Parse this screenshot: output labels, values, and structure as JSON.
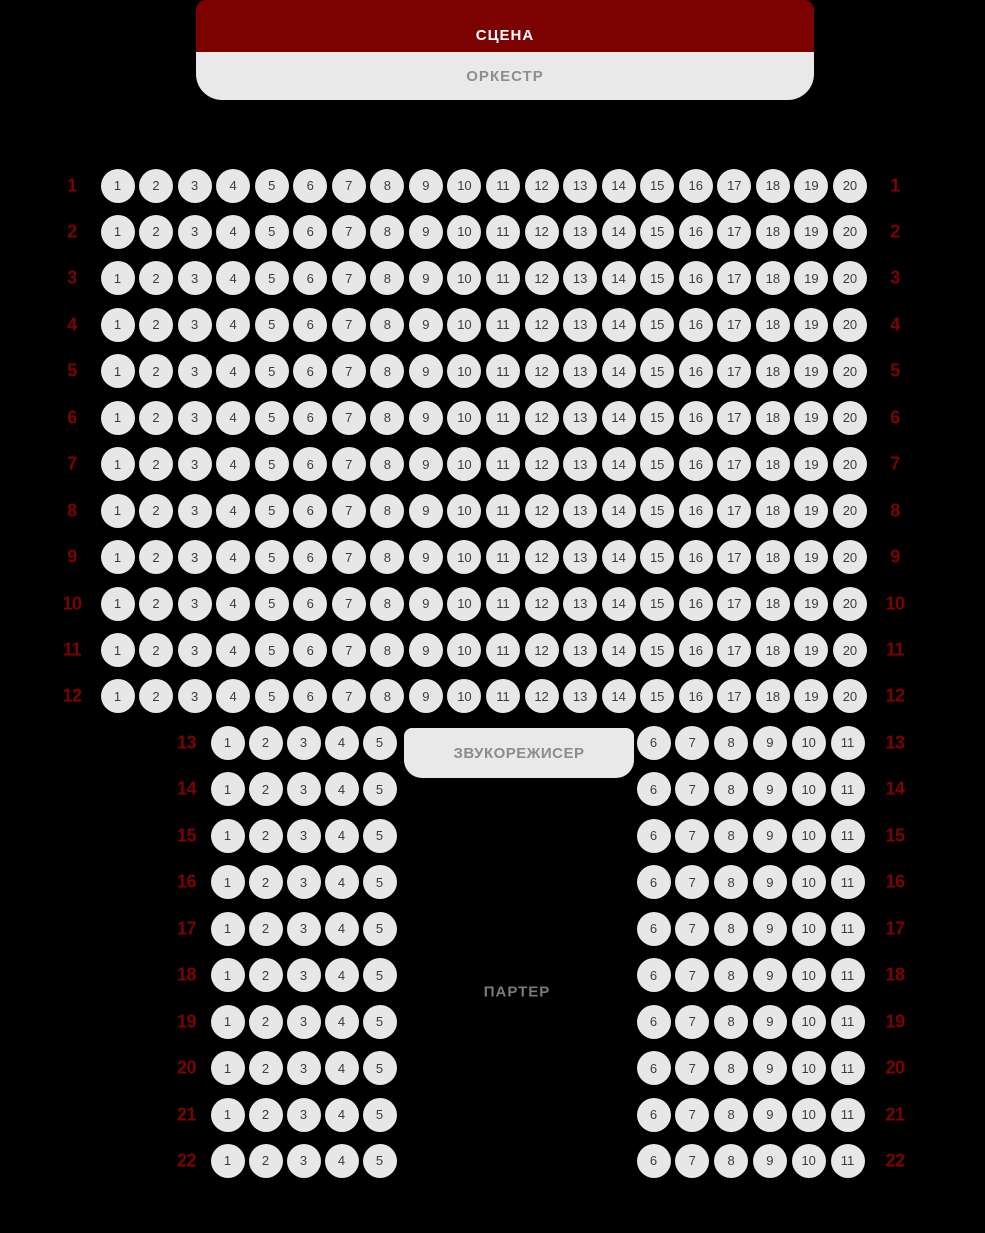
{
  "colors": {
    "background": "#000000",
    "stage_bg": "#7c0101",
    "stage_text": "#ffffff",
    "panel_bg": "#e9e9e9",
    "panel_text": "#8f8f8f",
    "sound_text": "#8c8c8c",
    "seat_bg": "#e7e7e7",
    "seat_text": "#3c3c3c",
    "row_label": "#7b0303",
    "parterre_text": "#7a7a7a"
  },
  "stage": {
    "label": "СЦЕНА"
  },
  "orchestra": {
    "label": "ОРКЕСТР"
  },
  "sound_engineer": {
    "label": "ЗВУКОРЕЖИСЕР"
  },
  "section_label": {
    "label": "ПАРТЕР"
  },
  "rows": [
    {
      "row": 1,
      "layout": "full",
      "seats": [
        1,
        2,
        3,
        4,
        5,
        6,
        7,
        8,
        9,
        10,
        11,
        12,
        13,
        14,
        15,
        16,
        17,
        18,
        19,
        20
      ]
    },
    {
      "row": 2,
      "layout": "full",
      "seats": [
        1,
        2,
        3,
        4,
        5,
        6,
        7,
        8,
        9,
        10,
        11,
        12,
        13,
        14,
        15,
        16,
        17,
        18,
        19,
        20
      ]
    },
    {
      "row": 3,
      "layout": "full",
      "seats": [
        1,
        2,
        3,
        4,
        5,
        6,
        7,
        8,
        9,
        10,
        11,
        12,
        13,
        14,
        15,
        16,
        17,
        18,
        19,
        20
      ]
    },
    {
      "row": 4,
      "layout": "full",
      "seats": [
        1,
        2,
        3,
        4,
        5,
        6,
        7,
        8,
        9,
        10,
        11,
        12,
        13,
        14,
        15,
        16,
        17,
        18,
        19,
        20
      ]
    },
    {
      "row": 5,
      "layout": "full",
      "seats": [
        1,
        2,
        3,
        4,
        5,
        6,
        7,
        8,
        9,
        10,
        11,
        12,
        13,
        14,
        15,
        16,
        17,
        18,
        19,
        20
      ]
    },
    {
      "row": 6,
      "layout": "full",
      "seats": [
        1,
        2,
        3,
        4,
        5,
        6,
        7,
        8,
        9,
        10,
        11,
        12,
        13,
        14,
        15,
        16,
        17,
        18,
        19,
        20
      ]
    },
    {
      "row": 7,
      "layout": "full",
      "seats": [
        1,
        2,
        3,
        4,
        5,
        6,
        7,
        8,
        9,
        10,
        11,
        12,
        13,
        14,
        15,
        16,
        17,
        18,
        19,
        20
      ]
    },
    {
      "row": 8,
      "layout": "full",
      "seats": [
        1,
        2,
        3,
        4,
        5,
        6,
        7,
        8,
        9,
        10,
        11,
        12,
        13,
        14,
        15,
        16,
        17,
        18,
        19,
        20
      ]
    },
    {
      "row": 9,
      "layout": "full",
      "seats": [
        1,
        2,
        3,
        4,
        5,
        6,
        7,
        8,
        9,
        10,
        11,
        12,
        13,
        14,
        15,
        16,
        17,
        18,
        19,
        20
      ]
    },
    {
      "row": 10,
      "layout": "full",
      "seats": [
        1,
        2,
        3,
        4,
        5,
        6,
        7,
        8,
        9,
        10,
        11,
        12,
        13,
        14,
        15,
        16,
        17,
        18,
        19,
        20
      ]
    },
    {
      "row": 11,
      "layout": "full",
      "seats": [
        1,
        2,
        3,
        4,
        5,
        6,
        7,
        8,
        9,
        10,
        11,
        12,
        13,
        14,
        15,
        16,
        17,
        18,
        19,
        20
      ]
    },
    {
      "row": 12,
      "layout": "full",
      "seats": [
        1,
        2,
        3,
        4,
        5,
        6,
        7,
        8,
        9,
        10,
        11,
        12,
        13,
        14,
        15,
        16,
        17,
        18,
        19,
        20
      ]
    },
    {
      "row": 13,
      "layout": "split",
      "left_seats": [
        1,
        2,
        3,
        4,
        5
      ],
      "right_seats": [
        6,
        7,
        8,
        9,
        10,
        11
      ]
    },
    {
      "row": 14,
      "layout": "split",
      "left_seats": [
        1,
        2,
        3,
        4,
        5
      ],
      "right_seats": [
        6,
        7,
        8,
        9,
        10,
        11
      ]
    },
    {
      "row": 15,
      "layout": "split",
      "left_seats": [
        1,
        2,
        3,
        4,
        5
      ],
      "right_seats": [
        6,
        7,
        8,
        9,
        10,
        11
      ]
    },
    {
      "row": 16,
      "layout": "split",
      "left_seats": [
        1,
        2,
        3,
        4,
        5
      ],
      "right_seats": [
        6,
        7,
        8,
        9,
        10,
        11
      ]
    },
    {
      "row": 17,
      "layout": "split",
      "left_seats": [
        1,
        2,
        3,
        4,
        5
      ],
      "right_seats": [
        6,
        7,
        8,
        9,
        10,
        11
      ]
    },
    {
      "row": 18,
      "layout": "split",
      "left_seats": [
        1,
        2,
        3,
        4,
        5
      ],
      "right_seats": [
        6,
        7,
        8,
        9,
        10,
        11
      ]
    },
    {
      "row": 19,
      "layout": "split",
      "left_seats": [
        1,
        2,
        3,
        4,
        5
      ],
      "right_seats": [
        6,
        7,
        8,
        9,
        10,
        11
      ]
    },
    {
      "row": 20,
      "layout": "split",
      "left_seats": [
        1,
        2,
        3,
        4,
        5
      ],
      "right_seats": [
        6,
        7,
        8,
        9,
        10,
        11
      ]
    },
    {
      "row": 21,
      "layout": "split",
      "left_seats": [
        1,
        2,
        3,
        4,
        5
      ],
      "right_seats": [
        6,
        7,
        8,
        9,
        10,
        11
      ]
    },
    {
      "row": 22,
      "layout": "split",
      "left_seats": [
        1,
        2,
        3,
        4,
        5
      ],
      "right_seats": [
        6,
        7,
        8,
        9,
        10,
        11
      ]
    }
  ]
}
